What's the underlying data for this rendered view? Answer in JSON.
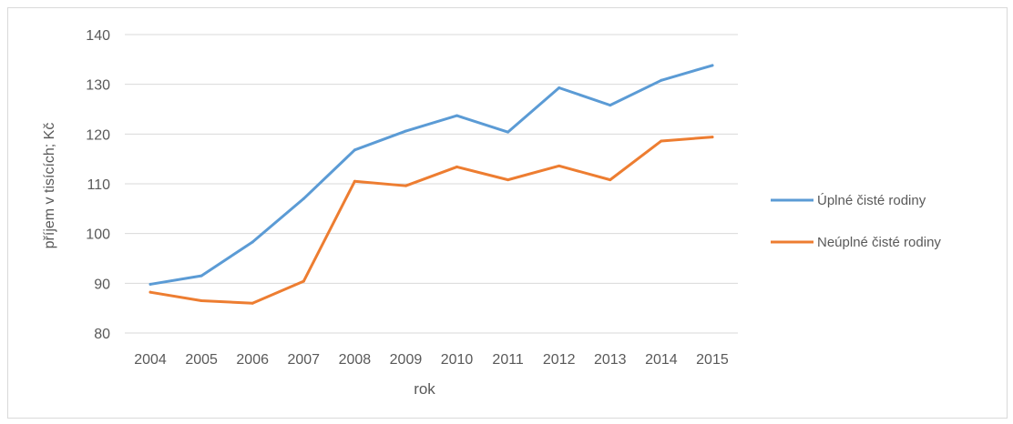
{
  "chart_data": {
    "type": "line",
    "title": "",
    "xlabel": "rok",
    "ylabel": "příjem v tisících; Kč",
    "ylim": [
      80,
      140
    ],
    "yticks": [
      80,
      90,
      100,
      110,
      120,
      130,
      140
    ],
    "categories": [
      "2004",
      "2005",
      "2006",
      "2007",
      "2008",
      "2009",
      "2010",
      "2011",
      "2012",
      "2013",
      "2014",
      "2015"
    ],
    "grid": true,
    "legend_position": "right",
    "series": [
      {
        "name": "Úplné čisté rodiny",
        "color": "#5b9bd5",
        "values": [
          89.8,
          91.5,
          98.3,
          107.0,
          116.8,
          120.6,
          123.7,
          120.4,
          129.3,
          125.8,
          130.8,
          133.8
        ]
      },
      {
        "name": "Neúplné čisté rodiny",
        "color": "#ed7d31",
        "values": [
          88.2,
          86.5,
          86.0,
          90.4,
          110.5,
          109.6,
          113.4,
          110.8,
          113.6,
          110.8,
          118.6,
          119.4
        ]
      }
    ]
  }
}
